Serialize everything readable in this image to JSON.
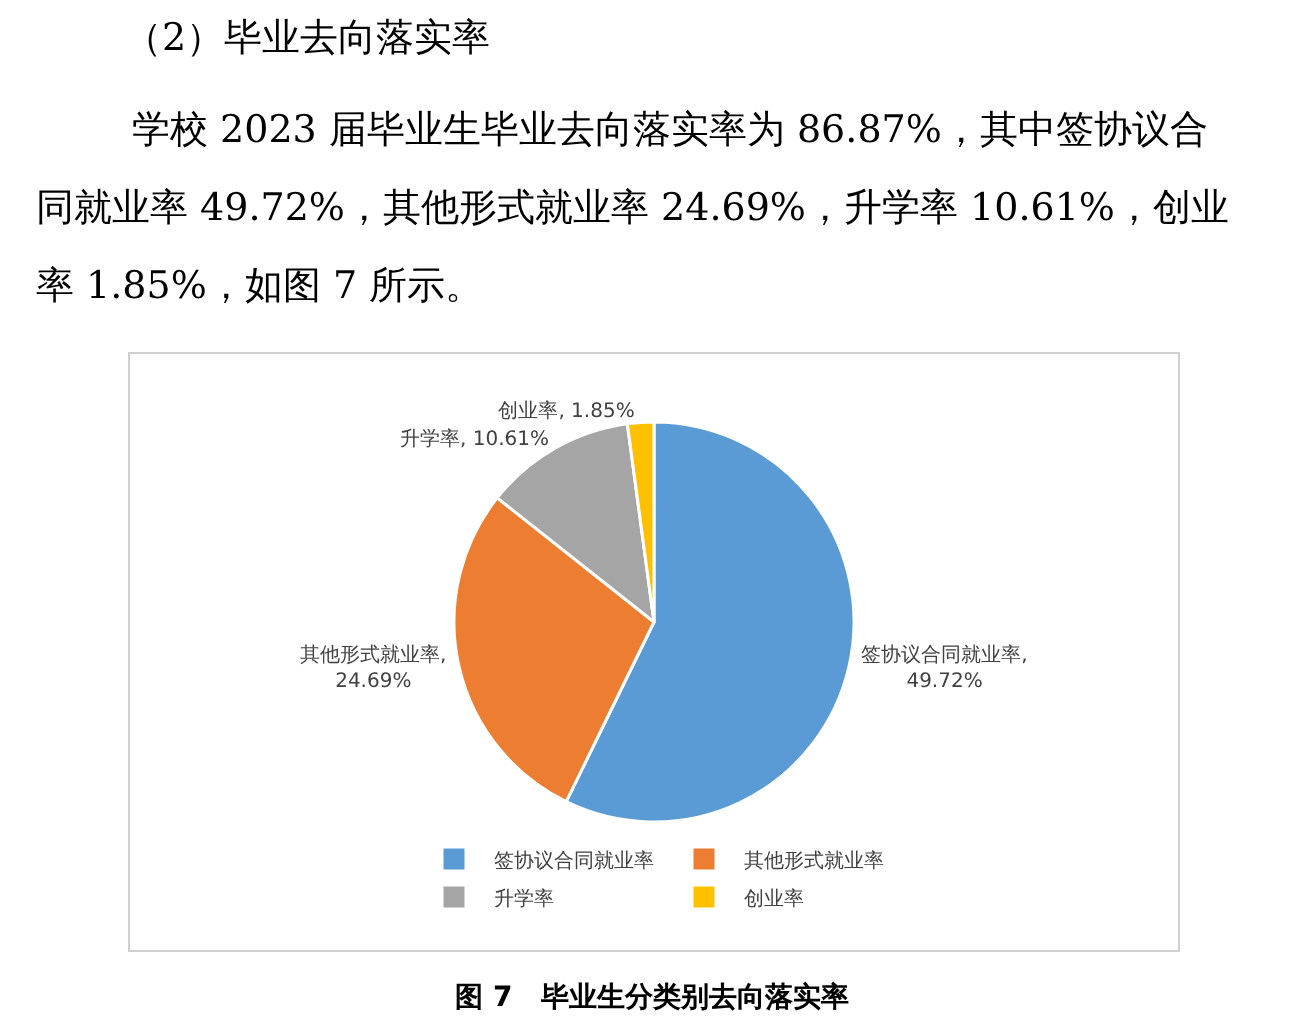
{
  "chart_data": {
    "type": "pie",
    "title": "（2）毕业去向落实率",
    "subtitle": "学校 2023 届毕业生毕业去向落实率为 86.87%，其中签协议合同就业率 49.72%，其他形式就业率 24.69%，升学率 10.61%，创业率 1.85%，如图 7 所示。",
    "categories": [
      "签协议合同就业率",
      "其他形式就业率",
      "升学率",
      "创业率"
    ],
    "values": [
      49.72,
      24.69,
      10.61,
      1.85
    ],
    "value_labels": [
      "签协议合同就业率, 49.72%",
      "其他形式就业率, 24.69%",
      "升学率, 10.61%",
      "创业率, 1.85%"
    ],
    "colors": [
      "#5b9bd5",
      "#ed7d31",
      "#a5a5a5",
      "#ffc000"
    ],
    "legend": "bottom",
    "annotations": [
      "图 7　毕业生分类别去向落实率"
    ]
  }
}
